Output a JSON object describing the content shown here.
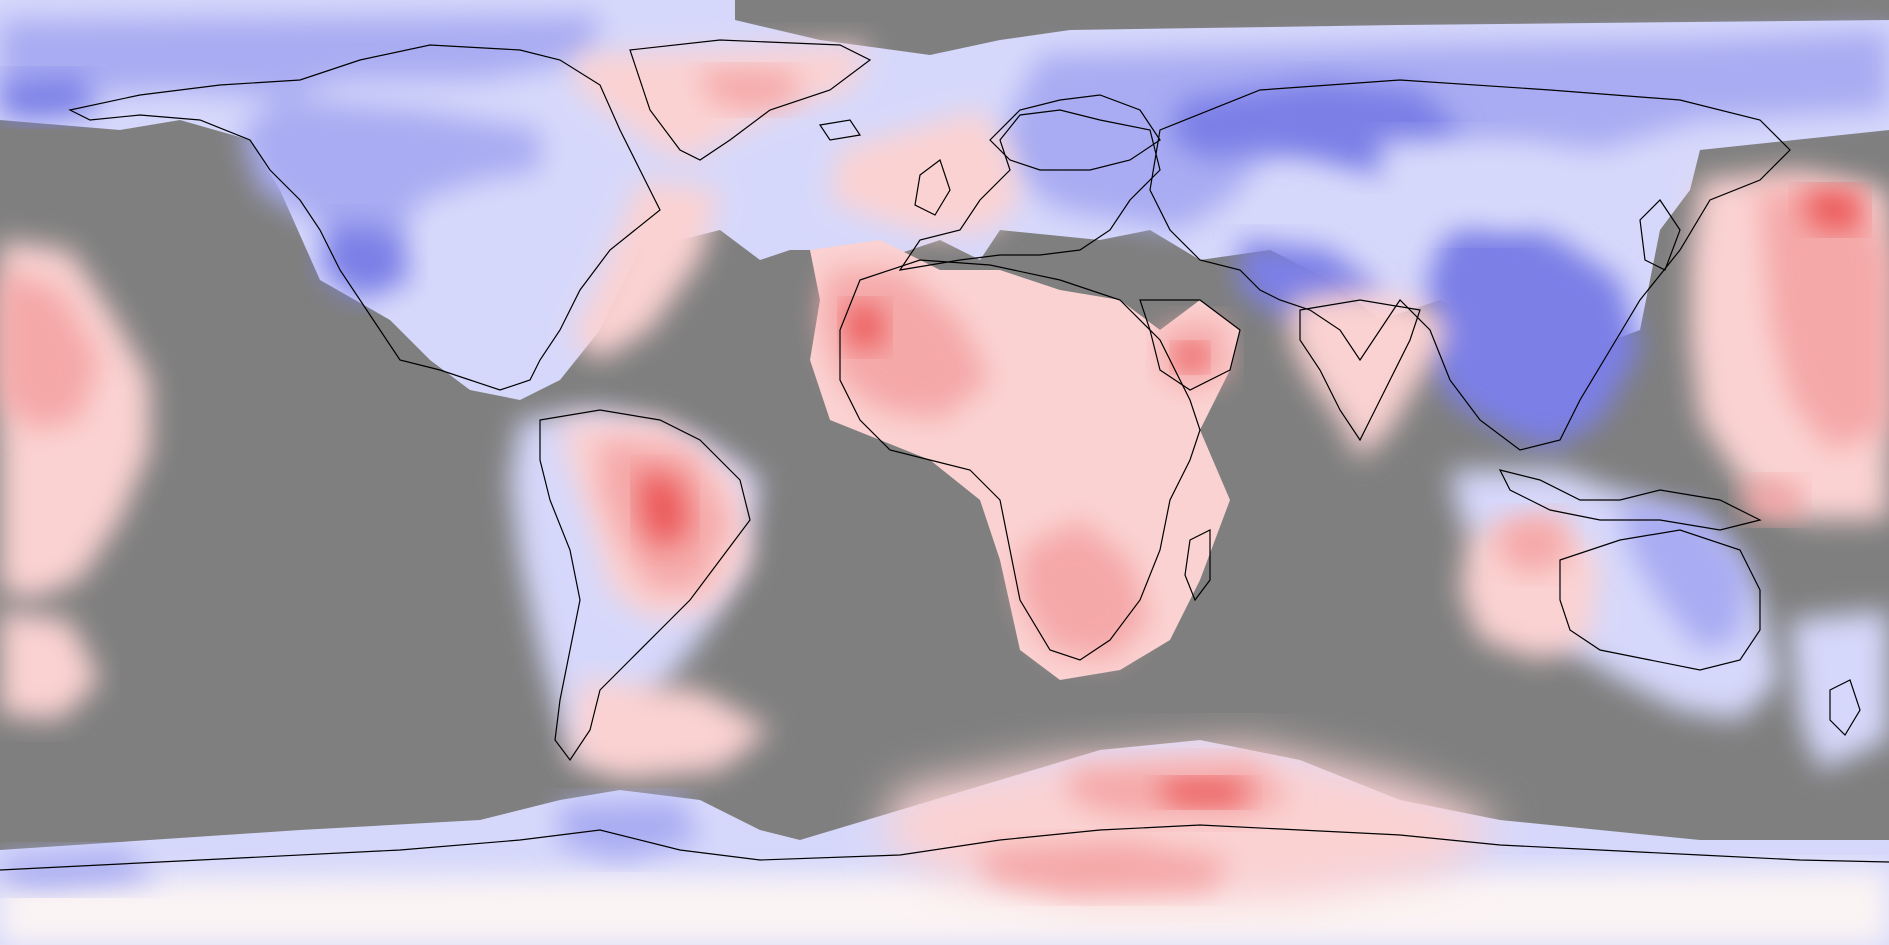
{
  "map": {
    "projection": "equirectangular",
    "extent": {
      "lon": [
        -180,
        180
      ],
      "lat": [
        -90,
        90
      ]
    },
    "missing_color": "#7f7f7f",
    "colors": {
      "strong_cool": "#7b7fe6",
      "cool": "#a9acf2",
      "light_cool": "#d6d8fb",
      "neutral": "#fbf4f4",
      "light_warm": "#fbd2d2",
      "warm": "#f5a8a8",
      "strong_warm": "#ec5a5a",
      "coastline": "#000000"
    },
    "legend": null
  }
}
